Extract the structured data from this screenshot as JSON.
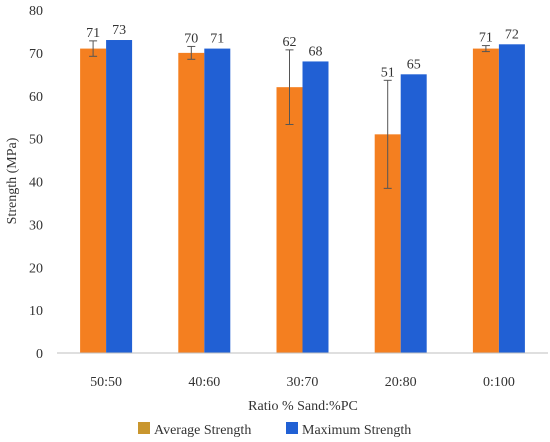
{
  "chart_data": {
    "type": "bar",
    "title": "",
    "xlabel": "Ratio % Sand:%PC",
    "ylabel": "Strength (MPa)",
    "ylim": [
      0,
      80
    ],
    "yticks": [
      0,
      10,
      20,
      30,
      40,
      50,
      60,
      70,
      80
    ],
    "grid": false,
    "legend_position": "bottom",
    "categories": [
      "50:50",
      "40:60",
      "30:70",
      "20:80",
      "0:100"
    ],
    "series": [
      {
        "name": "Average Strength",
        "color": "#F47F20",
        "legend_color": "#C9962E",
        "values": [
          71,
          70,
          62,
          51,
          71
        ],
        "error": [
          1.8,
          1.5,
          8.7,
          12.6,
          0.7
        ]
      },
      {
        "name": "Maximum Strength",
        "color": "#2160D4",
        "legend_color": "#2160D4",
        "values": [
          73,
          71,
          68,
          65,
          72
        ]
      }
    ]
  }
}
